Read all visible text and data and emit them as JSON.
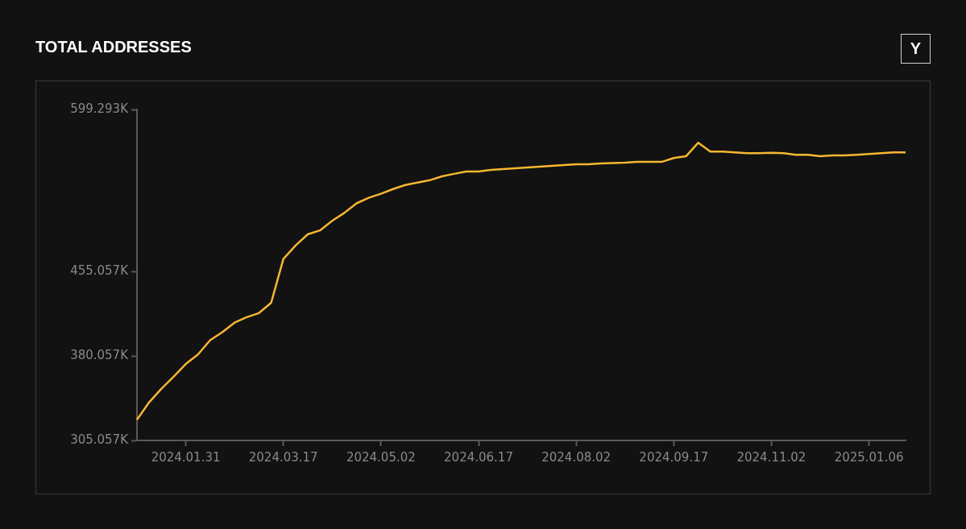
{
  "chart_data": {
    "type": "line",
    "title": "TOTAL ADDRESSES",
    "annotations": [
      "Y"
    ],
    "categories": [
      null,
      null,
      null,
      null,
      "2024.01.31",
      null,
      null,
      null,
      null,
      null,
      null,
      null,
      "2024.03.17",
      null,
      null,
      null,
      null,
      null,
      null,
      null,
      "2024.05.02",
      null,
      null,
      null,
      null,
      null,
      null,
      null,
      "2024.06.17",
      null,
      null,
      null,
      null,
      null,
      null,
      null,
      "2024.08.02",
      null,
      null,
      null,
      null,
      null,
      null,
      null,
      "2024.09.17",
      null,
      null,
      null,
      null,
      null,
      null,
      null,
      "2024.11.02",
      null,
      null,
      null,
      null,
      null,
      null,
      null,
      "2025.01.06",
      null,
      null,
      null
    ],
    "series": [
      {
        "color": "#f7b731",
        "values": [
          323.5,
          339.0,
          351.0,
          361.7,
          373.0,
          381.5,
          394.2,
          401.3,
          409.8,
          414.7,
          418.3,
          427.5,
          466.4,
          478.4,
          488.3,
          491.8,
          500.3,
          507.4,
          515.9,
          520.8,
          524.4,
          528.6,
          532.2,
          534.3,
          536.4,
          539.9,
          542.1,
          544.2,
          544.2,
          545.6,
          546.3,
          547.0,
          547.7,
          548.4,
          549.1,
          549.9,
          550.6,
          550.6,
          551.3,
          551.6,
          552.0,
          552.7,
          552.7,
          552.7,
          556.2,
          557.7,
          569.7,
          561.9,
          561.9,
          561.2,
          560.5,
          560.5,
          560.8,
          560.5,
          559.1,
          559.1,
          557.7,
          558.4,
          558.4,
          559.1,
          559.8,
          560.5,
          561.2,
          561.2
        ]
      }
    ],
    "ylim": [
      305.057,
      599.293
    ],
    "yticks": [
      {
        "value": 305.057,
        "label": "305.057K"
      },
      {
        "value": 380.057,
        "label": "380.057K"
      },
      {
        "value": 455.057,
        "label": "455.057K"
      },
      {
        "value": 599.293,
        "label": "599.293K"
      }
    ],
    "grid": false,
    "legend": false,
    "marker": "none",
    "line_style": "solid"
  }
}
